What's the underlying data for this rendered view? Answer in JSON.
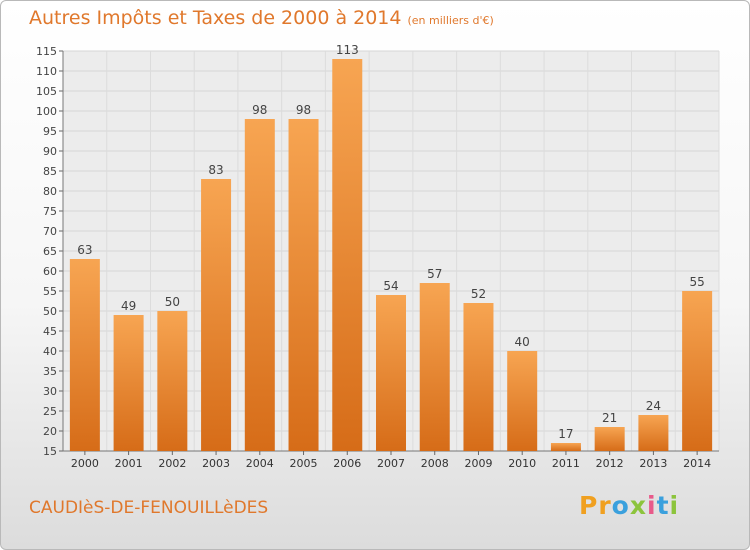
{
  "chart_data": {
    "type": "bar",
    "title": "Autres Impôts et Taxes de 2000 à 2014",
    "subtitle": "(en milliers d'€)",
    "categories": [
      "2000",
      "2001",
      "2002",
      "2003",
      "2004",
      "2005",
      "2006",
      "2007",
      "2008",
      "2009",
      "2010",
      "2011",
      "2012",
      "2013",
      "2014"
    ],
    "values": [
      63,
      49,
      50,
      83,
      98,
      98,
      113,
      54,
      57,
      52,
      40,
      17,
      21,
      24,
      55
    ],
    "ylim": [
      15,
      115
    ],
    "yticks": [
      15,
      20,
      25,
      30,
      35,
      40,
      45,
      50,
      55,
      60,
      65,
      70,
      75,
      80,
      85,
      90,
      95,
      100,
      105,
      110,
      115
    ],
    "grid": true,
    "bar_color": "#f0883a",
    "title_color": "#e0782c"
  },
  "footer": {
    "place": "CAUDIèS-DE-FENOUILLèDES",
    "brand": "Proxiti"
  }
}
